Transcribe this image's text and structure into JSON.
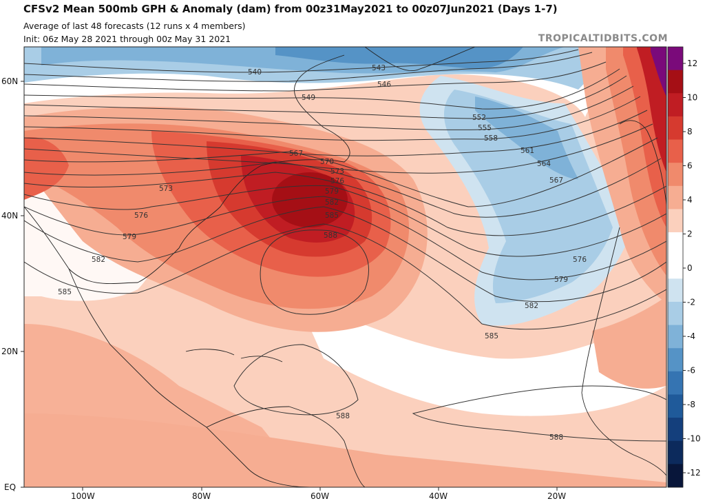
{
  "header": {
    "title": "CFSv2 Mean 500mb GPH & Anomaly (dam) from 00z31May2021 to 00z07Jun2021 (Days 1-7)",
    "subtitle_1": "Average of last 48 forecasts (12 runs x 4 members)",
    "subtitle_2": "Init: 06z May 28 2021 through 00z May 31 2021",
    "credit": "TROPICALTIDBITS.COM"
  },
  "axes": {
    "lat_labels": [
      "60N",
      "40N",
      "20N",
      "EQ"
    ],
    "lon_labels": [
      "100W",
      "80W",
      "60W",
      "40W",
      "20W"
    ]
  },
  "colorbar": {
    "ticks": [
      "12",
      "10",
      "8",
      "6",
      "4",
      "2",
      "0",
      "-2",
      "-4",
      "-6",
      "-8",
      "-10",
      "-12"
    ],
    "colors": [
      "#7a0a7a",
      "#a50f15",
      "#c01d23",
      "#d63a2f",
      "#e8604a",
      "#f08a6c",
      "#f6ad92",
      "#fbd0bd",
      "#ffffff",
      "#ffffff",
      "#cfe3f0",
      "#a9cde6",
      "#7fb2d8",
      "#5593c6",
      "#3574b2",
      "#1f5a9a",
      "#143f7c",
      "#0c2a5c",
      "#08163a"
    ]
  },
  "contour_labels": [
    "540",
    "543",
    "546",
    "549",
    "552",
    "555",
    "558",
    "561",
    "564",
    "567",
    "567",
    "570",
    "573",
    "573",
    "576",
    "576",
    "576",
    "579",
    "579",
    "579",
    "582",
    "582",
    "582",
    "585",
    "585",
    "585",
    "588",
    "588",
    "588"
  ],
  "colors": {
    "positive_anomaly": "#c01d23",
    "negative_anomaly": "#3574b2",
    "land_outline": "#222222"
  }
}
